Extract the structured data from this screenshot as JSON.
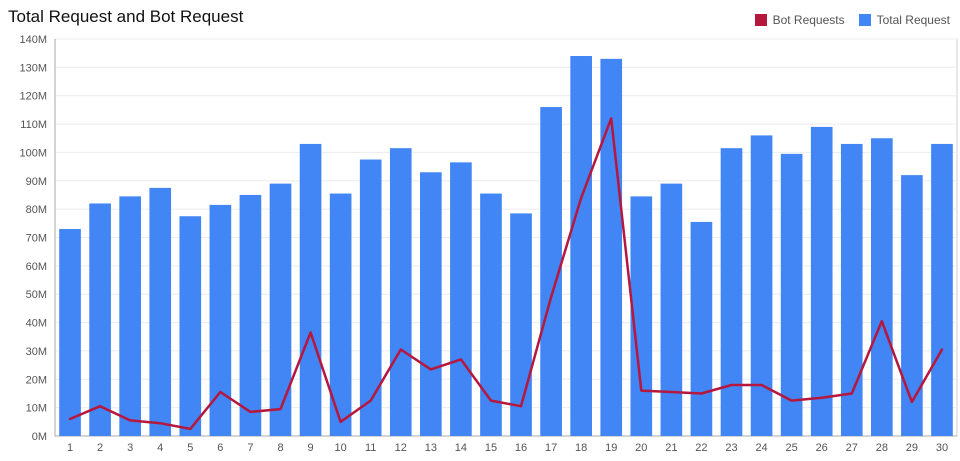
{
  "chart_data": {
    "type": "bar",
    "title": "Total Request and Bot Request",
    "xlabel": "",
    "ylabel": "",
    "categories": [
      "1",
      "2",
      "3",
      "4",
      "5",
      "6",
      "7",
      "8",
      "9",
      "10",
      "11",
      "12",
      "13",
      "14",
      "15",
      "16",
      "17",
      "18",
      "19",
      "20",
      "21",
      "22",
      "23",
      "24",
      "25",
      "26",
      "27",
      "28",
      "29",
      "30"
    ],
    "ylim": [
      0,
      140
    ],
    "yticks": [
      0,
      10,
      20,
      30,
      40,
      50,
      60,
      70,
      80,
      90,
      100,
      110,
      120,
      130,
      140
    ],
    "ytick_labels": [
      "0M",
      "10M",
      "20M",
      "30M",
      "40M",
      "50M",
      "60M",
      "70M",
      "80M",
      "90M",
      "100M",
      "110M",
      "120M",
      "130M",
      "140M"
    ],
    "grid": true,
    "legend_position": "top-right",
    "series": [
      {
        "name": "Total Request",
        "type": "bar",
        "color": "#4285F4",
        "values": [
          73,
          82,
          84.5,
          87.5,
          77.5,
          81.5,
          85,
          89,
          103,
          85.5,
          97.5,
          101.5,
          93,
          96.5,
          85.5,
          78.5,
          116,
          134,
          133,
          84.5,
          89,
          75.5,
          101.5,
          106,
          99.5,
          109,
          103,
          105,
          92,
          103
        ]
      },
      {
        "name": "Bot Requests",
        "type": "line",
        "color": "#B5173D",
        "values": [
          6,
          10.5,
          5.5,
          4.5,
          2.5,
          15.5,
          8.5,
          9.5,
          36.5,
          5,
          12.5,
          30.5,
          23.5,
          27,
          12.5,
          10.5,
          49,
          84,
          112,
          16,
          15.5,
          15,
          18,
          18,
          12.5,
          13.5,
          15,
          40.5,
          12,
          30.5
        ]
      }
    ]
  }
}
